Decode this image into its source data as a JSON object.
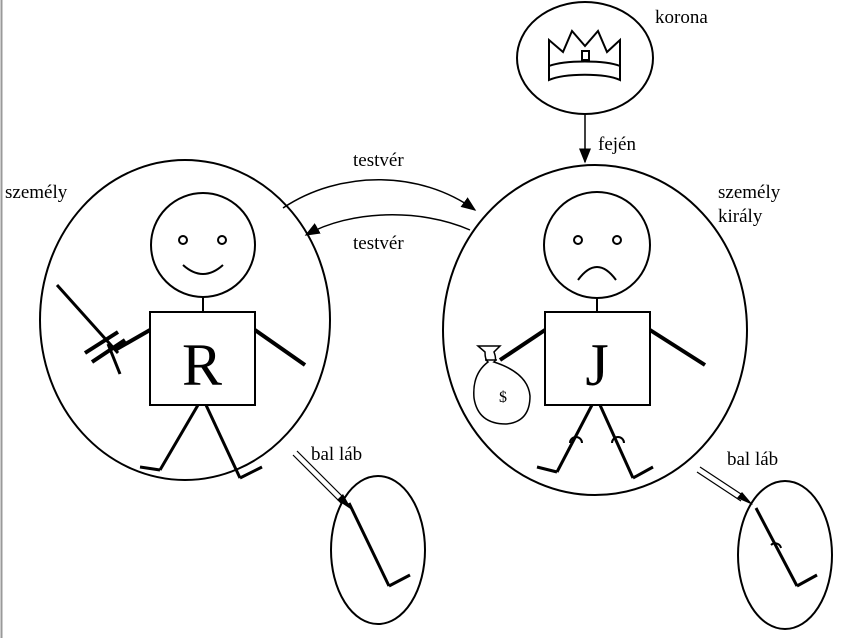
{
  "labels": {
    "crown": "korona",
    "on_head": "fején",
    "brother_top": "testvér",
    "brother_bottom": "testvér",
    "person_left": "személy",
    "person_right_line1": "személy",
    "person_right_line2": "király",
    "left_leg_left": "bal láb",
    "left_leg_right": "bal láb"
  },
  "figures": {
    "richard_letter": "R",
    "john_letter": "J",
    "moneybag_symbol": "$"
  }
}
